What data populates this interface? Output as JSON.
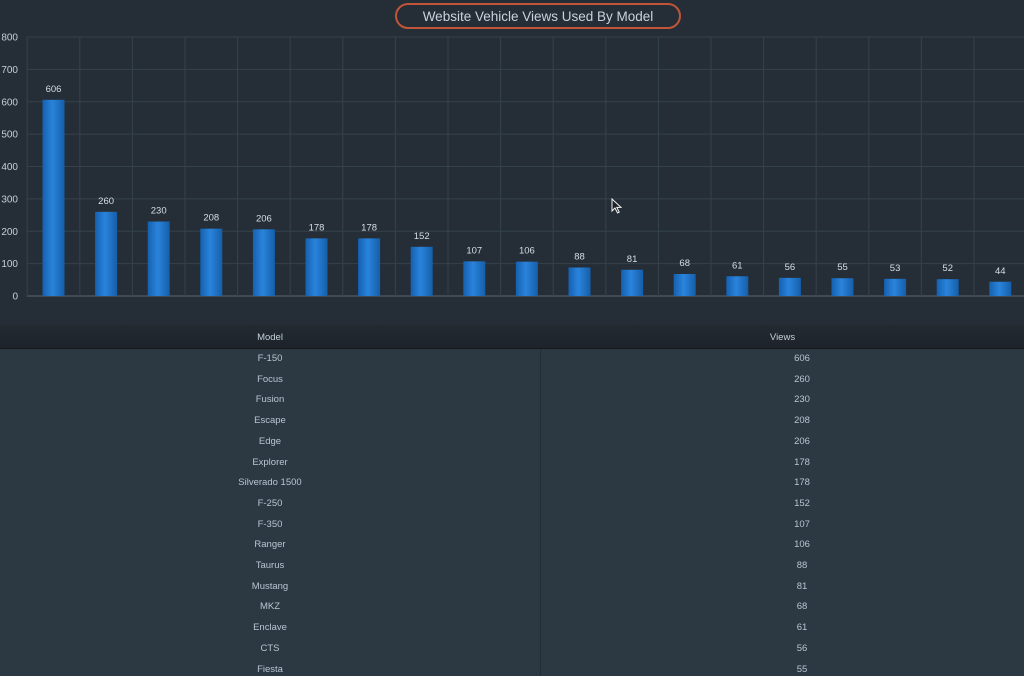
{
  "chart_data": {
    "type": "bar",
    "title": "Website Vehicle Views Used By Model",
    "ylim": [
      0,
      800
    ],
    "yticks": [
      0,
      100,
      200,
      300,
      400,
      500,
      600,
      700,
      800
    ],
    "categories": [
      "F-150",
      "Focus",
      "Fusion",
      "Escape",
      "Edge",
      "Explorer",
      "Silverado 1500",
      "F-250",
      "F-350",
      "Ranger",
      "Taurus",
      "Mustang",
      "MKZ",
      "Enclave",
      "CTS",
      "Fiesta",
      "",
      "",
      ""
    ],
    "values": [
      606,
      260,
      230,
      208,
      206,
      178,
      178,
      152,
      107,
      106,
      88,
      81,
      68,
      61,
      56,
      55,
      53,
      52,
      44
    ],
    "grid": true,
    "bar_color": "#1d74c9"
  },
  "table": {
    "headers": {
      "model": "Model",
      "views": "Views"
    },
    "rows": [
      {
        "model": "F-150",
        "views": "606"
      },
      {
        "model": "Focus",
        "views": "260"
      },
      {
        "model": "Fusion",
        "views": "230"
      },
      {
        "model": "Escape",
        "views": "208"
      },
      {
        "model": "Edge",
        "views": "206"
      },
      {
        "model": "Explorer",
        "views": "178"
      },
      {
        "model": "Silverado 1500",
        "views": "178"
      },
      {
        "model": "F-250",
        "views": "152"
      },
      {
        "model": "F-350",
        "views": "107"
      },
      {
        "model": "Ranger",
        "views": "106"
      },
      {
        "model": "Taurus",
        "views": "88"
      },
      {
        "model": "Mustang",
        "views": "81"
      },
      {
        "model": "MKZ",
        "views": "68"
      },
      {
        "model": "Enclave",
        "views": "61"
      },
      {
        "model": "CTS",
        "views": "56"
      },
      {
        "model": "Fiesta",
        "views": "55"
      }
    ]
  },
  "colors": {
    "background": "#252e36",
    "title_highlight": "#c0553a",
    "grid": "#34424c",
    "text": "#c7d3de"
  }
}
